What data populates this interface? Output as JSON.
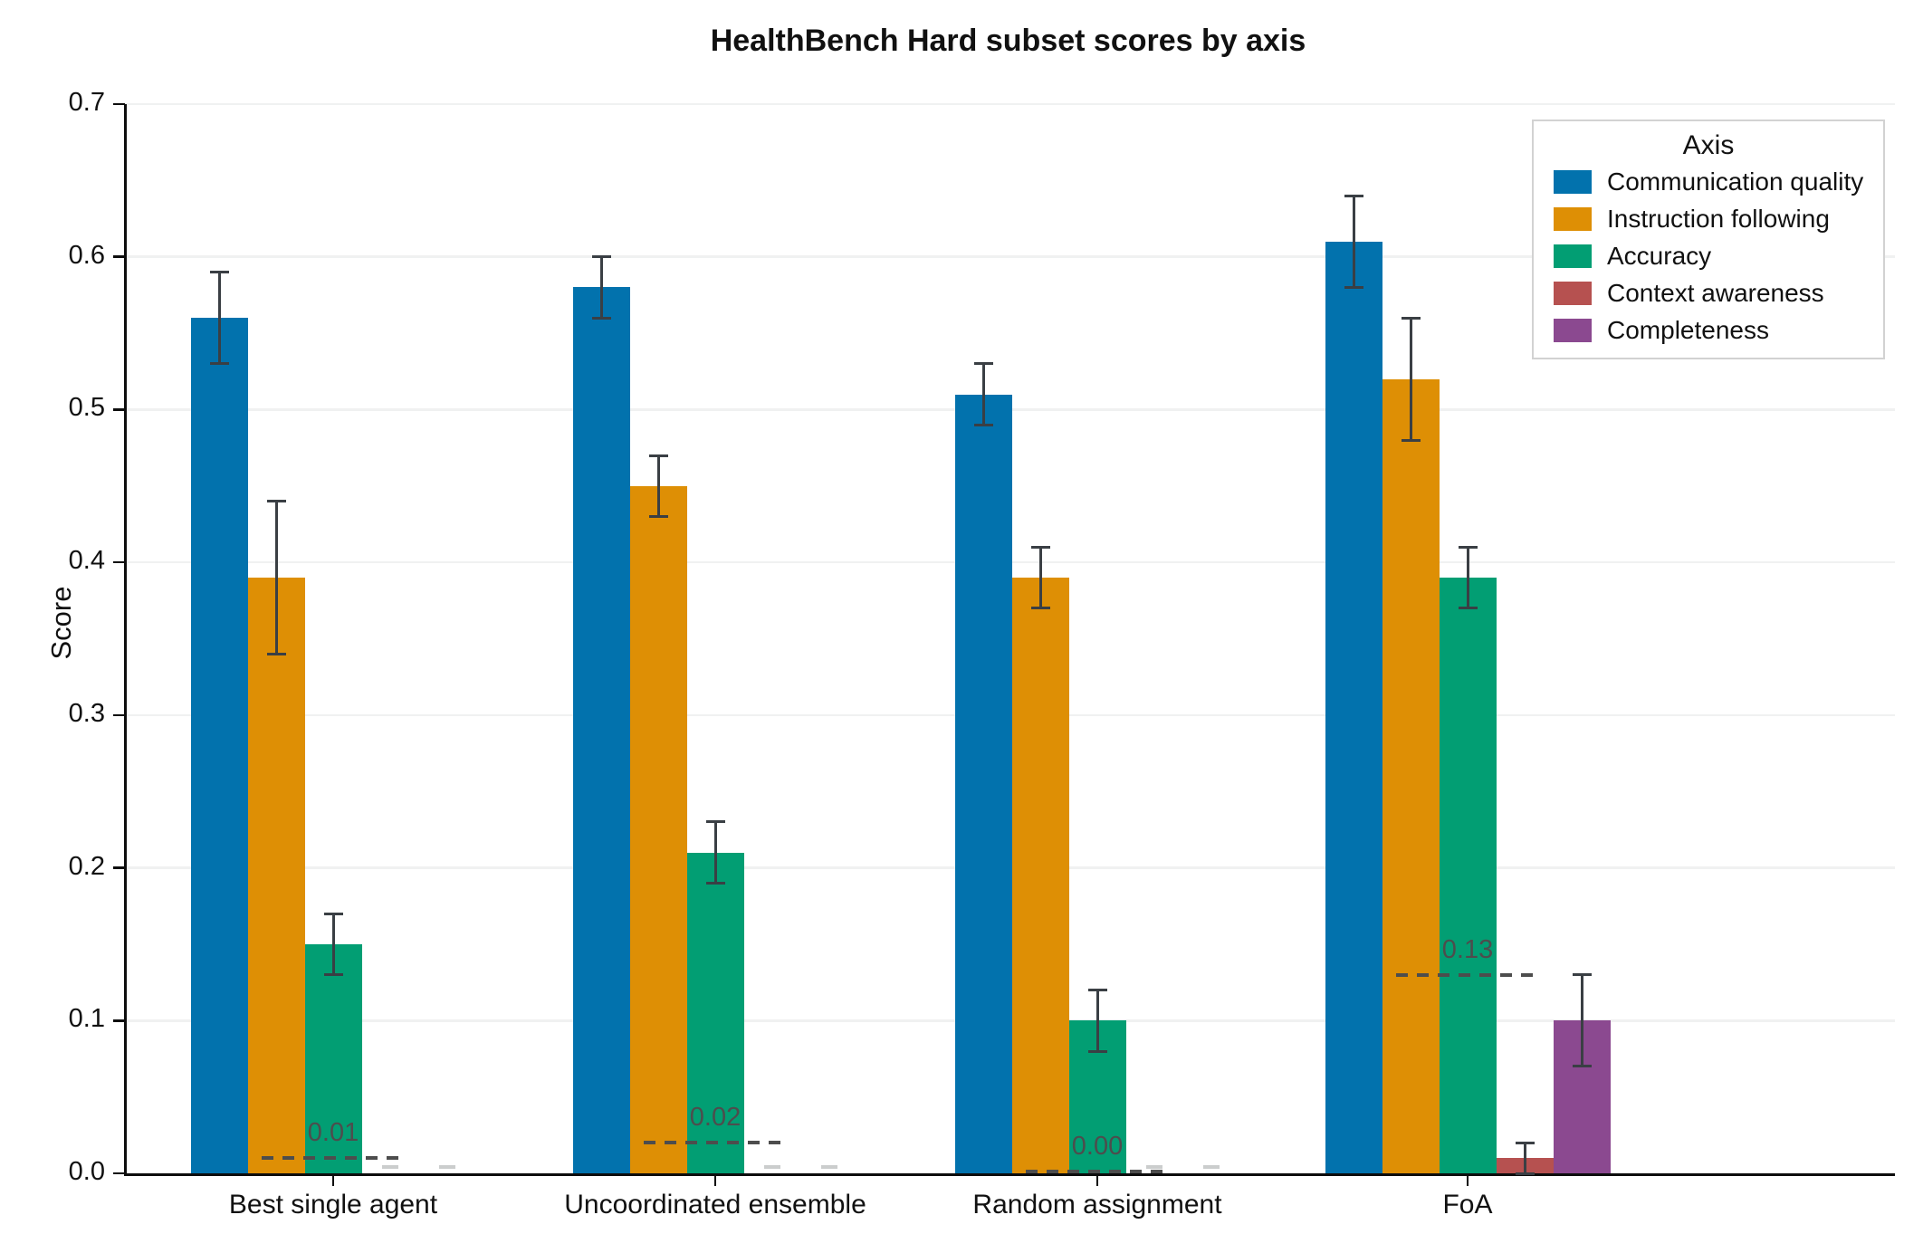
{
  "chart_data": {
    "type": "bar",
    "title": "HealthBench Hard subset scores by axis",
    "ylabel": "Score",
    "ylim": [
      0.0,
      0.7
    ],
    "yticks": [
      0.0,
      0.1,
      0.2,
      0.3,
      0.4,
      0.5,
      0.6,
      0.7
    ],
    "ytick_labels": [
      "0.0",
      "0.1",
      "0.2",
      "0.3",
      "0.4",
      "0.5",
      "0.6",
      "0.7"
    ],
    "categories": [
      "Best single agent",
      "Uncoordinated ensemble",
      "Random assignment",
      "FoA"
    ],
    "legend_title": "Axis",
    "legend_position": "upper right",
    "grid": true,
    "series": [
      {
        "name": "Communication quality",
        "color": "#0272ad",
        "values": [
          0.56,
          0.58,
          0.51,
          0.61
        ],
        "err_lo": [
          0.53,
          0.56,
          0.49,
          0.58
        ],
        "err_hi": [
          0.59,
          0.6,
          0.53,
          0.64
        ]
      },
      {
        "name": "Instruction following",
        "color": "#de8f05",
        "values": [
          0.39,
          0.45,
          0.39,
          0.52
        ],
        "err_lo": [
          0.34,
          0.43,
          0.37,
          0.48
        ],
        "err_hi": [
          0.44,
          0.47,
          0.41,
          0.56
        ]
      },
      {
        "name": "Accuracy",
        "color": "#029e73",
        "values": [
          0.15,
          0.21,
          0.1,
          0.39
        ],
        "err_lo": [
          0.13,
          0.19,
          0.08,
          0.37
        ],
        "err_hi": [
          0.17,
          0.23,
          0.12,
          0.41
        ]
      },
      {
        "name": "Context awareness",
        "color": "#b65150",
        "values": [
          0.0,
          0.0,
          0.0,
          0.01
        ],
        "err_lo": [
          0.0,
          0.0,
          0.0,
          0.0
        ],
        "err_hi": [
          0.004,
          0.004,
          0.004,
          0.02
        ]
      },
      {
        "name": "Completeness",
        "color": "#8b4990",
        "values": [
          0.0,
          0.0,
          0.0,
          0.1
        ],
        "err_lo": [
          0.0,
          0.0,
          0.0,
          0.07
        ],
        "err_hi": [
          0.004,
          0.004,
          0.004,
          0.13
        ]
      }
    ],
    "reference_lines": {
      "values": [
        0.01,
        0.02,
        0.0,
        0.13
      ],
      "labels": [
        "0.01",
        "0.02",
        "0.00",
        "0.13"
      ]
    },
    "style_colors": {
      "errorbar": "#3a3f44",
      "zero_errorbar_cap": "#cbcdcd",
      "reference_line": "#4d4d4d",
      "gridline": "#f0f1f1",
      "spine": "#0d0d0d"
    }
  }
}
